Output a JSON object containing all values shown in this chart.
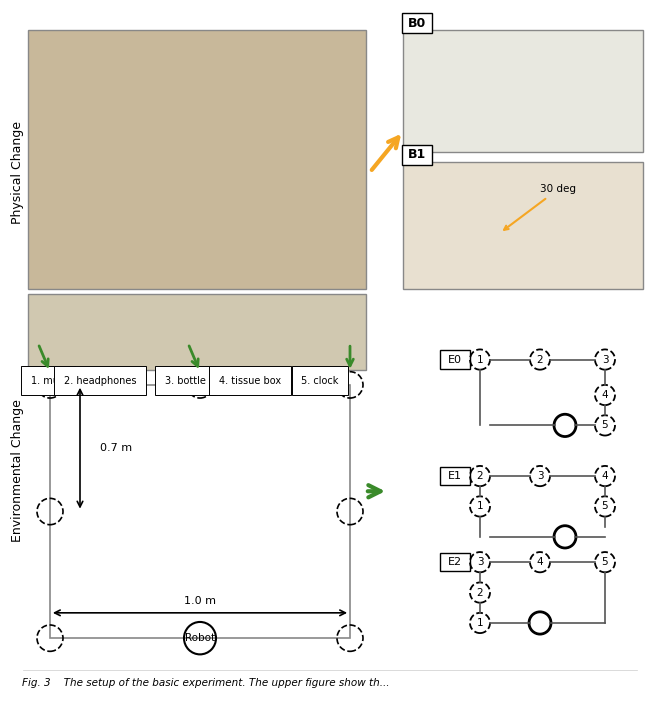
{
  "title": "",
  "bg_color": "#ffffff",
  "physical_change_label": "Physical Change",
  "env_change_label": "Environmental Change",
  "b0_label": "B0",
  "b1_label": "B1",
  "b1_angle_label": "30 deg",
  "e0_label": "E0",
  "e1_label": "E1",
  "e2_label": "E2",
  "items_label": "1. mug   2. headphones   3. bottle   4. tissue box   5. clock",
  "dim_07": "0.7 m",
  "dim_10": "1.0 m",
  "robot_label": "Robot",
  "arrow_color": "#f5a623",
  "green_arrow_color": "#3a8a2a",
  "node_dashed_color": "#000000",
  "node_solid_color": "#000000",
  "line_color": "#555555",
  "label_color": "#000000",
  "caption": "Fig. 3    The setup of the basic experiment. The upper figure show th..."
}
